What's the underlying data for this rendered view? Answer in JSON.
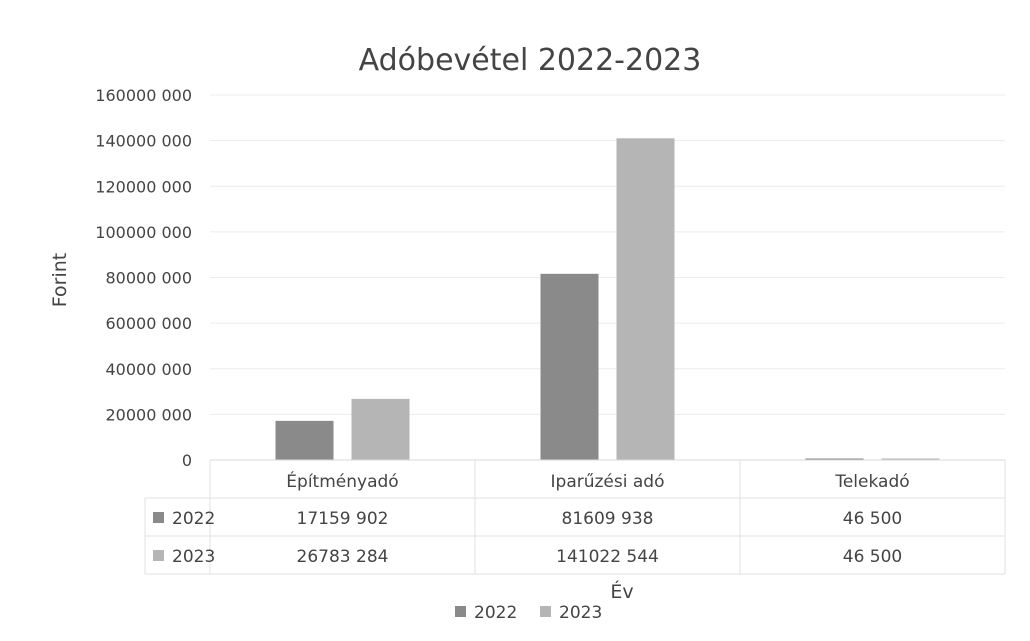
{
  "chart_data": {
    "type": "bar",
    "title": "Adóbevétel 2022-2023",
    "xlabel": "Év",
    "ylabel": "Forint",
    "categories": [
      "Építményadó",
      "Iparűzési adó",
      "Telekadó"
    ],
    "series": [
      {
        "name": "2022",
        "values": [
          17159902,
          81609938,
          46500
        ],
        "labels": [
          "17159 902",
          "81609 938",
          "46 500"
        ],
        "color": "#8a8a8a"
      },
      {
        "name": "2023",
        "values": [
          26783284,
          141022544,
          46500
        ],
        "labels": [
          "26783 284",
          "141022 544",
          "46 500"
        ],
        "color": "#b5b5b5"
      }
    ],
    "ylim": [
      0,
      160000000
    ],
    "yticks": [
      0,
      20000000,
      40000000,
      60000000,
      80000000,
      100000000,
      120000000,
      140000000,
      160000000
    ],
    "ytick_labels": [
      "0",
      "20000 000",
      "40000 000",
      "60000 000",
      "80000 000",
      "100000 000",
      "120000 000",
      "140000 000",
      "160000 000"
    ],
    "grid": true,
    "legend": "bottom",
    "data_table": true
  }
}
